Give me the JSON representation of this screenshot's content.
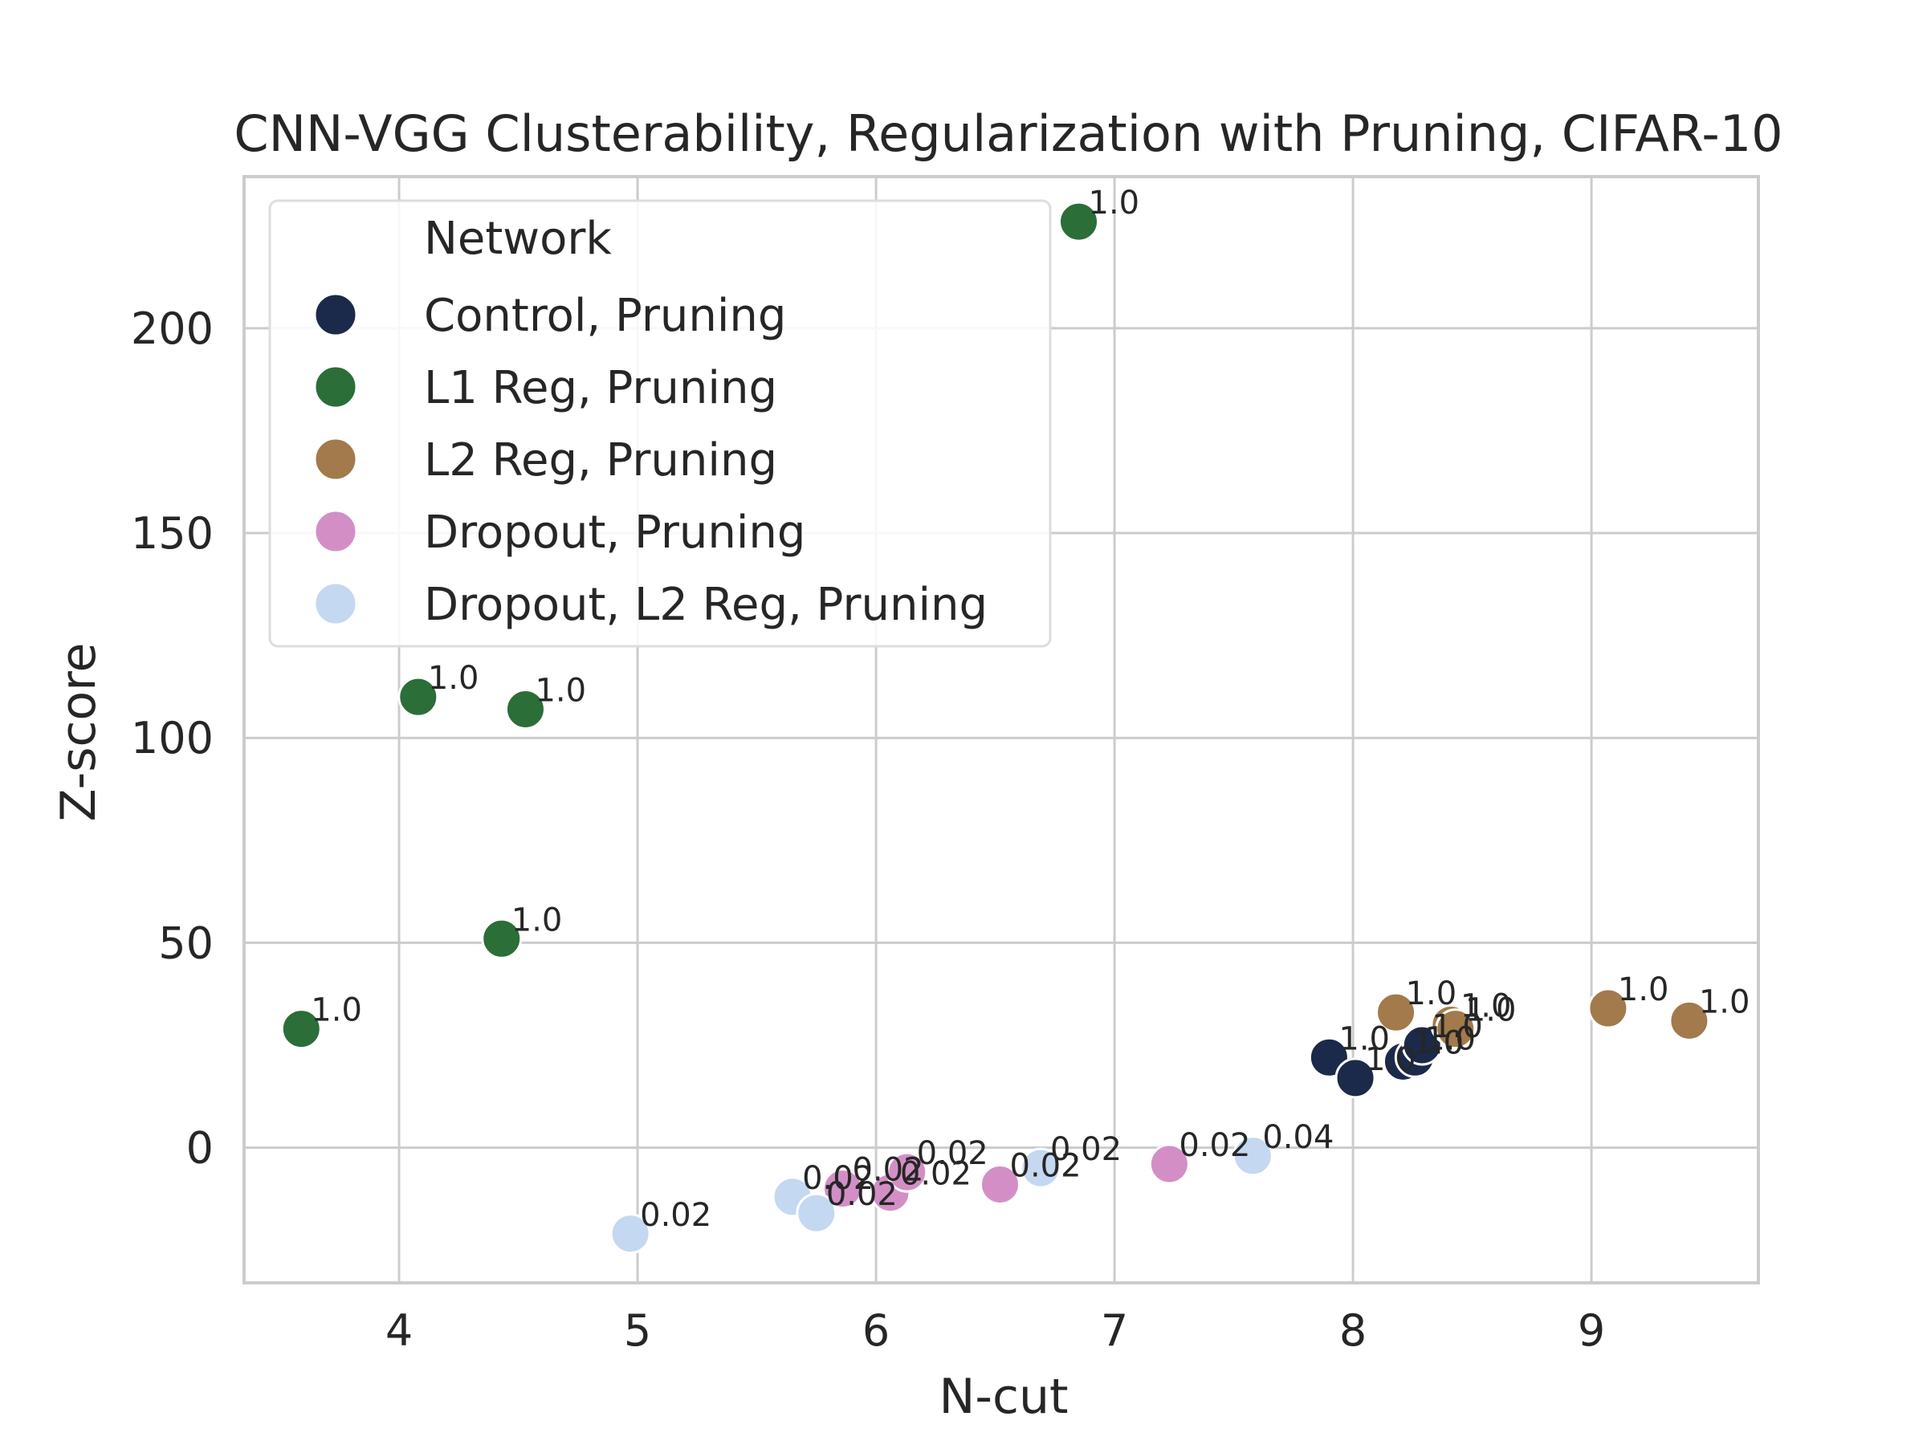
{
  "chart_data": {
    "type": "scatter",
    "title": "CNN-VGG Clusterability, Regularization with Pruning, CIFAR-10",
    "xlabel": "N-cut",
    "ylabel": "Z-score",
    "xlim": [
      3.35,
      9.7
    ],
    "ylim": [
      -33,
      237
    ],
    "xticks": [
      4,
      5,
      6,
      7,
      8,
      9
    ],
    "yticks": [
      0,
      50,
      100,
      150,
      200
    ],
    "grid": true,
    "legend": {
      "title": "Network",
      "position": "top-left"
    },
    "series": [
      {
        "name": "Control, Pruning",
        "color": "#1b2a4a",
        "points": [
          {
            "x": 7.9,
            "y": 22,
            "label": "1.0"
          },
          {
            "x": 8.01,
            "y": 17,
            "label": "1.0"
          },
          {
            "x": 8.21,
            "y": 21,
            "label": "1.0"
          },
          {
            "x": 8.26,
            "y": 22,
            "label": "1.0"
          },
          {
            "x": 8.29,
            "y": 25,
            "label": "1.0"
          }
        ]
      },
      {
        "name": "L1 Reg, Pruning",
        "color": "#2b6e38",
        "points": [
          {
            "x": 6.85,
            "y": 226,
            "label": "1.0"
          },
          {
            "x": 4.08,
            "y": 110,
            "label": "1.0"
          },
          {
            "x": 4.53,
            "y": 107,
            "label": "1.0"
          },
          {
            "x": 4.43,
            "y": 51,
            "label": "1.0"
          },
          {
            "x": 3.59,
            "y": 29,
            "label": "1.0"
          }
        ]
      },
      {
        "name": "L2 Reg, Pruning",
        "color": "#a27a4b",
        "points": [
          {
            "x": 8.18,
            "y": 33,
            "label": "1.0"
          },
          {
            "x": 8.41,
            "y": 30,
            "label": "1.0"
          },
          {
            "x": 8.43,
            "y": 29,
            "label": "1.0"
          },
          {
            "x": 9.07,
            "y": 34,
            "label": "1.0"
          },
          {
            "x": 9.41,
            "y": 31,
            "label": "1.0"
          }
        ]
      },
      {
        "name": "Dropout, Pruning",
        "color": "#d38fc5",
        "points": [
          {
            "x": 5.86,
            "y": -10,
            "label": "0.02"
          },
          {
            "x": 6.06,
            "y": -11,
            "label": "0.02"
          },
          {
            "x": 6.13,
            "y": -6,
            "label": "0.02"
          },
          {
            "x": 6.52,
            "y": -9,
            "label": "0.02"
          },
          {
            "x": 7.23,
            "y": -4,
            "label": "0.02"
          }
        ]
      },
      {
        "name": "Dropout, L2 Reg, Pruning",
        "color": "#c4d8f1",
        "points": [
          {
            "x": 4.97,
            "y": -21,
            "label": "0.02"
          },
          {
            "x": 5.65,
            "y": -12,
            "label": "0.02"
          },
          {
            "x": 5.75,
            "y": -16,
            "label": "0.02"
          },
          {
            "x": 6.69,
            "y": -5,
            "label": "0.02"
          },
          {
            "x": 7.58,
            "y": -2,
            "label": "0.04"
          }
        ]
      }
    ]
  }
}
